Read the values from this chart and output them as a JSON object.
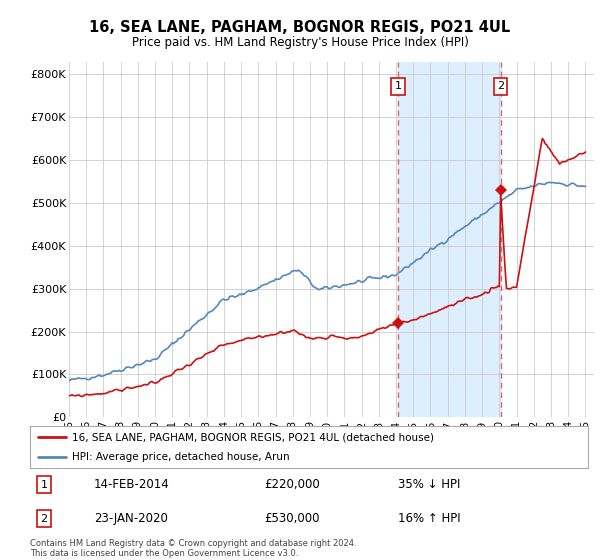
{
  "title": "16, SEA LANE, PAGHAM, BOGNOR REGIS, PO21 4UL",
  "subtitle": "Price paid vs. HM Land Registry's House Price Index (HPI)",
  "yticks": [
    0,
    100000,
    200000,
    300000,
    400000,
    500000,
    600000,
    700000,
    800000
  ],
  "ytick_labels": [
    "£0",
    "£100K",
    "£200K",
    "£300K",
    "£400K",
    "£500K",
    "£600K",
    "£700K",
    "£800K"
  ],
  "xlim_start": 1995.0,
  "xlim_end": 2025.5,
  "ylim_min": 0,
  "ylim_max": 830000,
  "hpi_color": "#5588bb",
  "price_color": "#cc1111",
  "marker1_date": 2014.12,
  "marker2_date": 2020.07,
  "marker1_price": 220000,
  "marker2_price": 530000,
  "legend_label1": "16, SEA LANE, PAGHAM, BOGNOR REGIS, PO21 4UL (detached house)",
  "legend_label2": "HPI: Average price, detached house, Arun",
  "ann1_text": "14-FEB-2014",
  "ann1_price": "£220,000",
  "ann1_hpi": "35% ↓ HPI",
  "ann2_text": "23-JAN-2020",
  "ann2_price": "£530,000",
  "ann2_hpi": "16% ↑ HPI",
  "footer": "Contains HM Land Registry data © Crown copyright and database right 2024.\nThis data is licensed under the Open Government Licence v3.0.",
  "background_color": "#ffffff",
  "grid_color": "#cccccc",
  "span_color": "#ddeeff"
}
